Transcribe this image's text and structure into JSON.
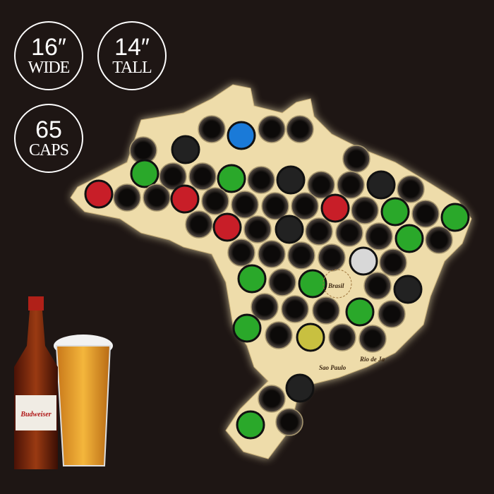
{
  "badges": [
    {
      "value": "16″",
      "unit": "WIDE"
    },
    {
      "value": "14″",
      "unit": "TALL"
    },
    {
      "value": "65",
      "unit": "CAPS"
    }
  ],
  "map": {
    "country_label": "Brasil",
    "city_labels": [
      "Sao Paulo",
      "Rio de Ja"
    ],
    "wood_color": "#eedcaa",
    "background_color": "#1e1614"
  },
  "product_photo": {
    "bottle_brand": "Budweiser"
  }
}
